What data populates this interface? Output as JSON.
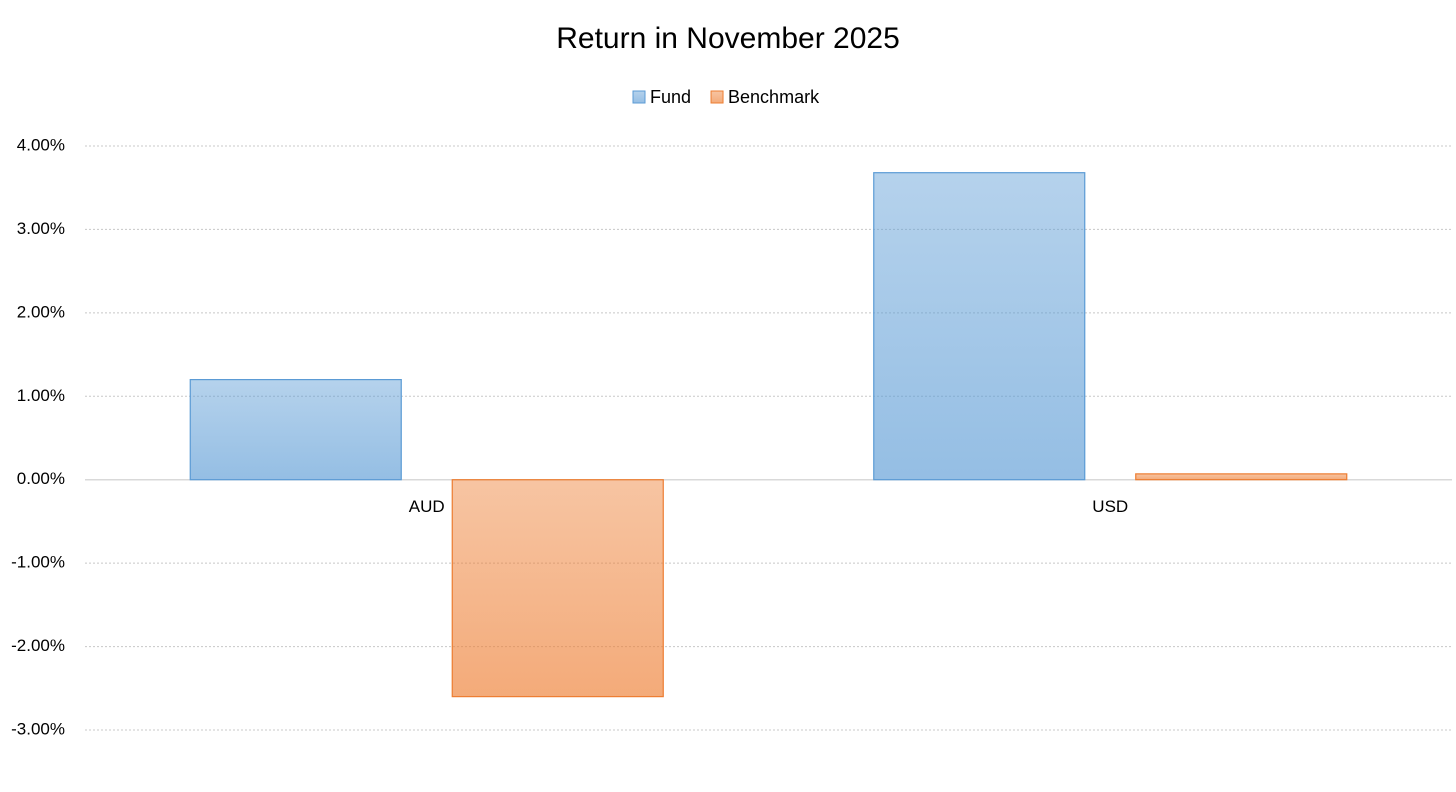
{
  "chart_data": {
    "type": "bar",
    "title": "Return in November 2025",
    "categories": [
      "AUD",
      "USD"
    ],
    "series": [
      {
        "name": "Fund",
        "color": "#5b9bd5",
        "values": [
          1.2,
          3.68
        ]
      },
      {
        "name": "Benchmark",
        "color": "#ed7d31",
        "values": [
          -2.6,
          0.07
        ]
      }
    ],
    "ylim": [
      -3,
      4
    ],
    "yticks": [
      {
        "value": -3,
        "label": "-3.00%"
      },
      {
        "value": -2,
        "label": "-2.00%"
      },
      {
        "value": -1,
        "label": "-1.00%"
      },
      {
        "value": 0,
        "label": "0.00%"
      },
      {
        "value": 1,
        "label": "1.00%"
      },
      {
        "value": 2,
        "label": "2.00%"
      },
      {
        "value": 3,
        "label": "3.00%"
      },
      {
        "value": 4,
        "label": "4.00%"
      }
    ],
    "grid": true,
    "legend": "top"
  }
}
